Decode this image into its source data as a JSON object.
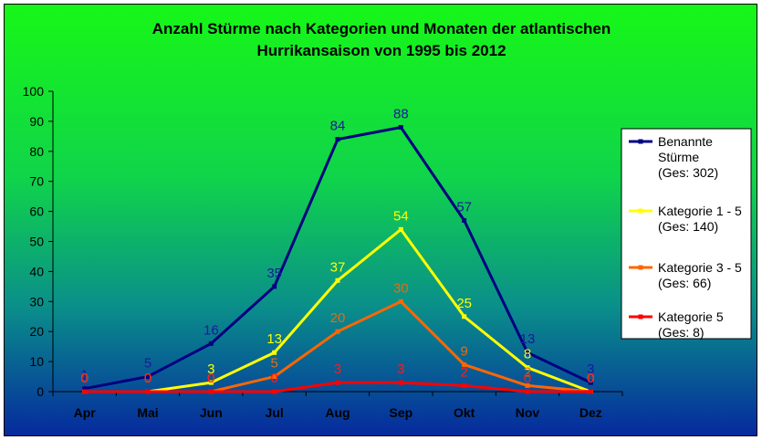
{
  "chart_data": {
    "type": "line",
    "title_lines": [
      "Anzahl Stürme nach Kategorien und Monaten der atlantischen",
      "Hurrikansaison von 1995 bis 2012"
    ],
    "categories": [
      "Apr",
      "Mai",
      "Jun",
      "Jul",
      "Aug",
      "Sep",
      "Okt",
      "Nov",
      "Dez"
    ],
    "ylim": [
      0,
      100
    ],
    "yticks": [
      0,
      10,
      20,
      30,
      40,
      50,
      60,
      70,
      80,
      90,
      100
    ],
    "grid": false,
    "legend_position": "right",
    "series": [
      {
        "legend_lines": [
          "Benannte",
          "Stürme",
          "(Ges: 302)"
        ],
        "color": "#000080",
        "values": [
          1,
          5,
          16,
          35,
          84,
          88,
          57,
          13,
          3
        ]
      },
      {
        "legend_lines": [
          "Kategorie 1 - 5",
          "(Ges: 140)"
        ],
        "color": "#ffff00",
        "values": [
          0,
          0,
          3,
          13,
          37,
          54,
          25,
          8,
          0
        ]
      },
      {
        "legend_lines": [
          "Kategorie 3 - 5",
          "(Ges: 66)"
        ],
        "color": "#ff6600",
        "values": [
          0,
          0,
          0,
          5,
          20,
          30,
          9,
          2,
          0
        ]
      },
      {
        "legend_lines": [
          "Kategorie 5",
          "(Ges: 8)"
        ],
        "color": "#ff0000",
        "values": [
          0,
          0,
          0,
          0,
          3,
          3,
          2,
          0,
          0
        ]
      }
    ]
  }
}
